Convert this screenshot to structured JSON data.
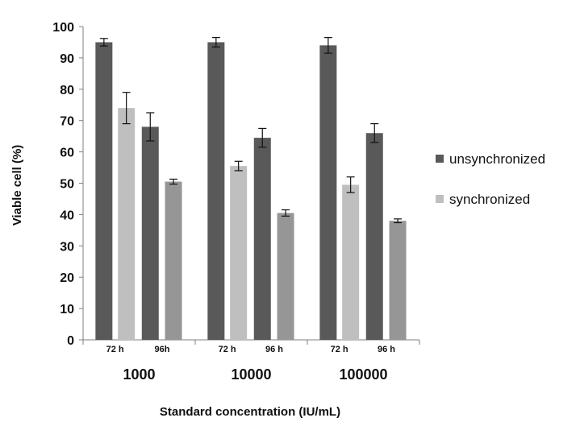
{
  "chart_data": {
    "type": "bar",
    "title": "",
    "xlabel": "Standard concentration  (IU/mL)",
    "ylabel": "Viable cell  (%)",
    "ylim": [
      0,
      100
    ],
    "yticks": [
      0,
      10,
      20,
      30,
      40,
      50,
      60,
      70,
      80,
      90,
      100
    ],
    "groups": [
      "1000",
      "10000",
      "100000"
    ],
    "subcategories": [
      "72 h",
      "96h",
      "72 h",
      "96 h",
      "72 h",
      "96 h"
    ],
    "legend_position": "right",
    "series": [
      {
        "name": "unsynchronized",
        "color": "#595959",
        "values": [
          95,
          68,
          95,
          64.5,
          94,
          66
        ],
        "errors": [
          1.2,
          4.5,
          1.5,
          3,
          2.5,
          3
        ]
      },
      {
        "name": "synchronized",
        "color": "#bfbfbf",
        "alt_color": "#969696",
        "values": [
          74,
          50.5,
          55.5,
          40.5,
          49.5,
          38
        ],
        "errors": [
          5,
          0.8,
          1.5,
          1,
          2.5,
          0.6
        ]
      }
    ]
  }
}
